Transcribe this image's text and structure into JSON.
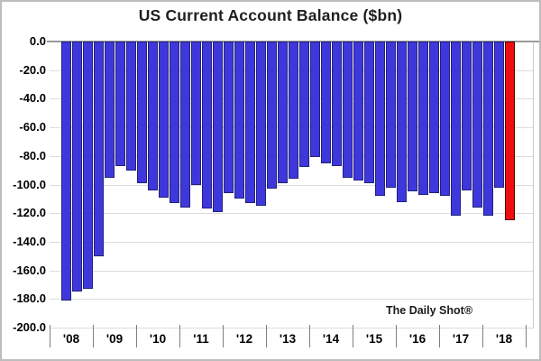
{
  "chart_data": {
    "type": "bar",
    "title": "US Current Account Balance ($bn)",
    "xlabel": "",
    "ylabel": "",
    "unit": "$bn",
    "ylim": [
      -200,
      0
    ],
    "ytick_step": 20,
    "ytick_labels": [
      "0.0",
      "-20.0",
      "-40.0",
      "-60.0",
      "-80.0",
      "-100.0",
      "-120.0",
      "-140.0",
      "-160.0",
      "-180.0",
      "-200.0"
    ],
    "x_year_labels": [
      "'08",
      "'09",
      "'10",
      "'11",
      "'12",
      "'13",
      "'14",
      "'15",
      "'16",
      "'17",
      "'18"
    ],
    "slots_per_year": 4,
    "first_bar_slot_offset": 1,
    "frequency": "quarterly",
    "values": [
      -181,
      -175,
      -173,
      -150,
      -95,
      -87,
      -90,
      -99,
      -104,
      -109,
      -113,
      -116,
      -100,
      -117,
      -119,
      -106,
      -110,
      -113,
      -115,
      -103,
      -99,
      -96,
      -88,
      -81,
      -85,
      -87,
      -95,
      -97,
      -99,
      -108,
      -102,
      -112,
      -105,
      -107,
      -106,
      -108,
      -122,
      -104,
      -116,
      -122,
      -102,
      -125
    ],
    "highlight_index": 41,
    "bar_color_default": "#3e38dc",
    "bar_border_default": "#23217a",
    "bar_color_highlight": "#ee0e0e",
    "bar_border_highlight": "#4d0000",
    "gridline_color": "#dcdcdc",
    "zero_line_color": "#9a9a9a",
    "grid": "horizontal",
    "legend": "none",
    "annotation": "The Daily Shot®"
  }
}
